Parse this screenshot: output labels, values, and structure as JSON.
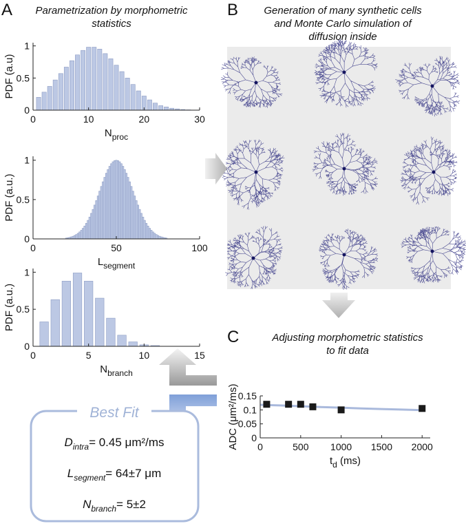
{
  "figure": {
    "panel_a": "A",
    "panel_b": "B",
    "panel_c": "C",
    "title_a": [
      "Parametrization by morphometric",
      "statistics"
    ],
    "title_b": [
      "Generation of many synthetic cells",
      "and Monte Carlo simulation of",
      "diffusion inside"
    ],
    "title_c": [
      "Adjusting morphometric statistics",
      "to fit data"
    ]
  },
  "best_fit": {
    "title": "Best Fit",
    "lines": [
      {
        "sym": "D",
        "sub": "intra",
        "text": "= 0.45 μm²/ms"
      },
      {
        "sym": "L",
        "sub": "segment",
        "text": "= 64±7 μm"
      },
      {
        "sym": "N",
        "sub": "branch",
        "text": "= 5±2"
      }
    ]
  },
  "chart_data": [
    {
      "type": "bar",
      "ylabel": "PDF (a.u)",
      "xlabel": "N",
      "xlabel_sub": "proc",
      "color": "#bcc8e4",
      "x": [
        1,
        2,
        3,
        4,
        5,
        6,
        7,
        8,
        9,
        10,
        11,
        12,
        13,
        14,
        15,
        16,
        17,
        18,
        19,
        20,
        21,
        22,
        23,
        24,
        25,
        26,
        27,
        28
      ],
      "values": [
        0.2,
        0.28,
        0.37,
        0.47,
        0.57,
        0.67,
        0.77,
        0.86,
        0.93,
        0.98,
        0.98,
        0.95,
        0.88,
        0.8,
        0.7,
        0.6,
        0.5,
        0.4,
        0.3,
        0.22,
        0.16,
        0.11,
        0.07,
        0.05,
        0.03,
        0.02,
        0.01,
        0.005
      ],
      "xlim": [
        0,
        30
      ],
      "xticks": [
        0,
        10,
        20,
        30
      ],
      "ylim": [
        0,
        1.05
      ],
      "yticks": [
        0,
        0.5,
        1
      ]
    },
    {
      "type": "bar",
      "ylabel": "PDF (a.u.)",
      "xlabel": "L",
      "xlabel_sub": "segment",
      "color": "#bcc8e4",
      "x": [
        20,
        21,
        22,
        23,
        24,
        25,
        26,
        27,
        28,
        29,
        30,
        31,
        32,
        33,
        34,
        35,
        36,
        37,
        38,
        39,
        40,
        41,
        42,
        43,
        44,
        45,
        46,
        47,
        48,
        49,
        50,
        51,
        52,
        53,
        54,
        55,
        56,
        57,
        58,
        59,
        60,
        61,
        62,
        63,
        64,
        65,
        66,
        67,
        68,
        69,
        70,
        71,
        72,
        73,
        74,
        75,
        76,
        77,
        78,
        79,
        80
      ],
      "values": [
        0.011,
        0.015,
        0.02,
        0.026,
        0.034,
        0.044,
        0.056,
        0.071,
        0.089,
        0.11,
        0.135,
        0.164,
        0.198,
        0.236,
        0.278,
        0.325,
        0.375,
        0.43,
        0.487,
        0.546,
        0.607,
        0.667,
        0.726,
        0.783,
        0.835,
        0.882,
        0.923,
        0.956,
        0.98,
        0.995,
        1,
        0.995,
        0.98,
        0.956,
        0.923,
        0.882,
        0.835,
        0.783,
        0.726,
        0.667,
        0.607,
        0.546,
        0.487,
        0.43,
        0.375,
        0.325,
        0.278,
        0.236,
        0.198,
        0.164,
        0.135,
        0.11,
        0.089,
        0.071,
        0.056,
        0.044,
        0.034,
        0.026,
        0.02,
        0.015,
        0.011
      ],
      "xlim": [
        0,
        100
      ],
      "xticks": [
        0,
        50,
        100
      ],
      "ylim": [
        0,
        1.05
      ],
      "yticks": [
        0,
        0.5,
        1
      ]
    },
    {
      "type": "bar",
      "ylabel": "PDF (a.u.)",
      "xlabel": "N",
      "xlabel_sub": "branch",
      "color": "#bcc8e4",
      "x": [
        1,
        2,
        3,
        4,
        5,
        6,
        7,
        8,
        9,
        10,
        11
      ],
      "values": [
        0.33,
        0.63,
        0.88,
        0.99,
        0.88,
        0.65,
        0.38,
        0.15,
        0.06,
        0.02,
        0.01
      ],
      "xlim": [
        0,
        15
      ],
      "xticks": [
        0,
        5,
        10,
        15
      ],
      "ylim": [
        0,
        1.05
      ],
      "yticks": [
        0,
        0.5,
        1
      ]
    },
    {
      "type": "scatter",
      "ylabel": "ADC (μm²/ms)",
      "xlabel": "t",
      "xlabel_sub": "d",
      "xlabel_text": " (ms)",
      "series": [
        {
          "kind": "line",
          "color": "#a9b9dc",
          "x": [
            0,
            250,
            500,
            750,
            1000,
            1250,
            1500,
            1750,
            2000
          ],
          "values": [
            0.118,
            0.116,
            0.113,
            0.11,
            0.108,
            0.105,
            0.103,
            0.101,
            0.099
          ]
        },
        {
          "kind": "points",
          "color": "#1a1a1a",
          "x": [
            80,
            350,
            500,
            650,
            1000,
            2000
          ],
          "values": [
            0.12,
            0.12,
            0.12,
            0.111,
            0.1,
            0.105
          ]
        }
      ],
      "xlim": [
        0,
        2100
      ],
      "xticks": [
        0,
        500,
        1000,
        1500,
        2000
      ],
      "ylim": [
        0,
        0.15
      ],
      "yticks": [
        0,
        0.05,
        0.1,
        0.15
      ]
    }
  ]
}
